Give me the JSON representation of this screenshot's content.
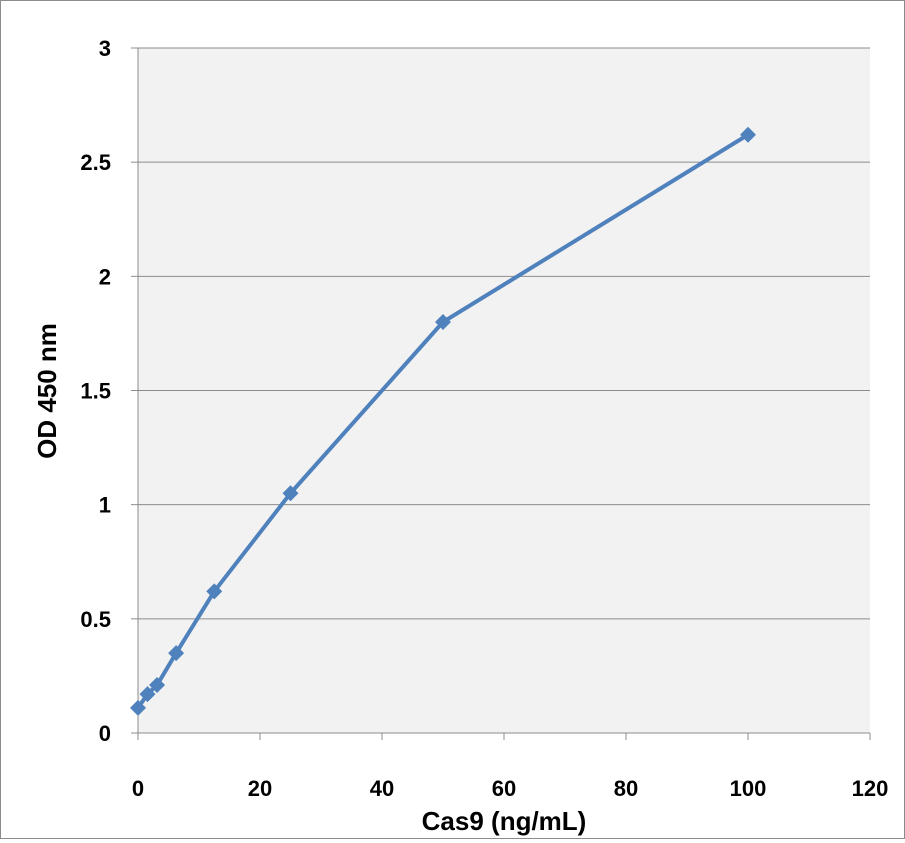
{
  "chart_data": {
    "type": "line",
    "title": "",
    "xlabel": "Cas9 (ng/mL)",
    "ylabel": "OD 450 nm",
    "xlim": [
      0,
      120
    ],
    "ylim": [
      0,
      3
    ],
    "x_ticks": [
      "0",
      "20",
      "40",
      "60",
      "80",
      "100",
      "120"
    ],
    "y_ticks": [
      "0",
      "0.5",
      "1",
      "1.5",
      "2",
      "2.5",
      "3"
    ],
    "grid": "horizontal",
    "legend": "none",
    "series": [
      {
        "x": [
          0,
          1.56,
          3.125,
          6.25,
          12.5,
          25,
          50,
          100
        ],
        "y": [
          0.11,
          0.17,
          0.21,
          0.35,
          0.62,
          1.05,
          1.8,
          2.62
        ]
      }
    ],
    "colors": {
      "series": "#4f81bd",
      "plot_area": "#f2f2f2",
      "gridline": "#8c8c8c",
      "frame": "#8c8c8c"
    }
  }
}
